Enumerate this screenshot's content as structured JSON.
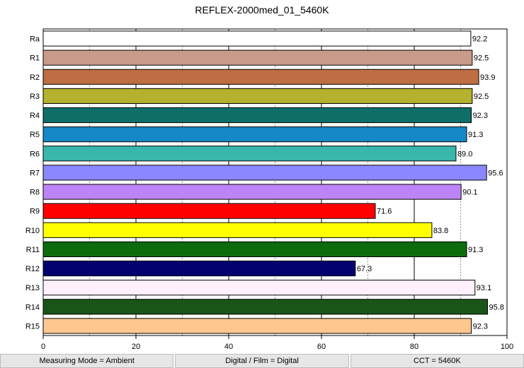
{
  "chart_data": {
    "type": "bar",
    "orientation": "horizontal",
    "title": "REFLEX-2000med_01_5460K",
    "categories": [
      "Ra",
      "R1",
      "R2",
      "R3",
      "R4",
      "R5",
      "R6",
      "R7",
      "R8",
      "R9",
      "R10",
      "R11",
      "R12",
      "R13",
      "R14",
      "R15"
    ],
    "values": [
      92.2,
      92.5,
      93.9,
      92.5,
      92.3,
      91.3,
      89.0,
      95.6,
      90.1,
      71.6,
      83.8,
      91.3,
      67.3,
      93.1,
      95.8,
      92.3
    ],
    "value_labels": [
      "92.2",
      "92.5",
      "93.9",
      "92.5",
      "92.3",
      "91.3",
      "89.0",
      "95.6",
      "90.1",
      "71.6",
      "83.8",
      "91.3",
      "67.3",
      "93.1",
      "95.8",
      "92.3"
    ],
    "colors": [
      "#ffffff",
      "#c89a88",
      "#bf6d42",
      "#b5b02e",
      "#0f6e68",
      "#1688c8",
      "#38b7aa",
      "#8b87fe",
      "#bd84f8",
      "#ff0000",
      "#ffff00",
      "#0d6b0d",
      "#02016f",
      "#fff0fc",
      "#1a5518",
      "#fec790"
    ],
    "xlim": [
      0,
      100
    ],
    "xticks": [
      "0",
      "20",
      "40",
      "60",
      "80",
      "100"
    ],
    "major_grid": [
      20,
      40,
      60,
      80
    ],
    "minor_grid": [
      10,
      30,
      50,
      70,
      90
    ],
    "xlabel": "",
    "ylabel": ""
  },
  "footer": {
    "measuring_mode": "Measuring Mode = Ambient",
    "film": "Digital / Film = Digital",
    "cct": "CCT = 5460K"
  }
}
